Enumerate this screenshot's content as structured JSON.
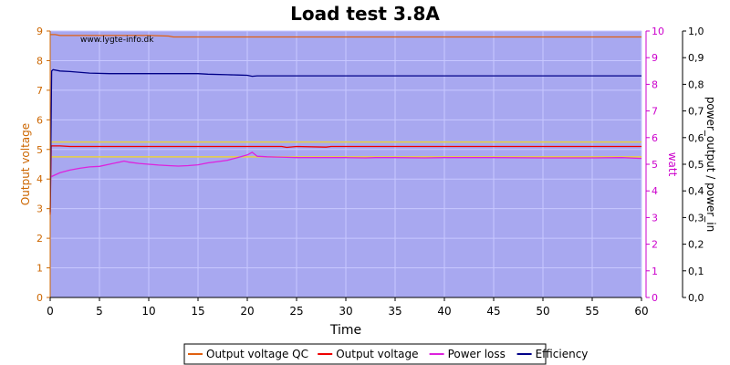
{
  "chart_data": {
    "type": "line",
    "title": "Load test 3.8A",
    "watermark": "www.lygte-info.dk",
    "xlabel": "Time",
    "xlim": [
      0,
      60
    ],
    "x_ticks": [
      "0",
      "5",
      "10",
      "15",
      "20",
      "25",
      "30",
      "35",
      "40",
      "45",
      "50",
      "55",
      "60"
    ],
    "y_left": {
      "label": "Output voltage",
      "color": "#cc6600",
      "lim": [
        0,
        9
      ],
      "ticks": [
        "0",
        "1",
        "2",
        "3",
        "4",
        "5",
        "6",
        "7",
        "8",
        "9"
      ]
    },
    "y_right1": {
      "label": "watt",
      "color": "#cc00cc",
      "lim": [
        0,
        10
      ],
      "ticks": [
        "0",
        "1",
        "2",
        "3",
        "4",
        "5",
        "6",
        "7",
        "8",
        "9",
        "10"
      ]
    },
    "y_right2": {
      "label": "power_output / power_in",
      "color": "#000000",
      "lim": [
        0,
        1
      ],
      "ticks": [
        "0,0",
        "0,1",
        "0,2",
        "0,3",
        "0,4",
        "0,5",
        "0,6",
        "0,7",
        "0,8",
        "0,9",
        "1,0"
      ]
    },
    "plot_background": "#a8a8f0",
    "grid": true,
    "legend_position": "bottom",
    "reference_lines": [
      {
        "axis": "left",
        "value": 5.25,
        "color": "#e8d040"
      },
      {
        "axis": "left",
        "value": 4.75,
        "color": "#e8d040"
      }
    ],
    "series": [
      {
        "name": "Output voltage QC",
        "color": "#e06010",
        "axis": "left",
        "x": [
          0,
          0.5,
          1,
          5,
          10,
          12,
          12.5,
          20,
          30,
          40,
          50,
          60
        ],
        "y": [
          8.88,
          8.88,
          8.85,
          8.85,
          8.85,
          8.83,
          8.8,
          8.8,
          8.8,
          8.8,
          8.8,
          8.8
        ]
      },
      {
        "name": "Output voltage",
        "color": "#ee0000",
        "axis": "left",
        "x": [
          0,
          0.1,
          1,
          2,
          5,
          10,
          20,
          23.5,
          24,
          25,
          28,
          28.5,
          30,
          40,
          50,
          60
        ],
        "y": [
          2.8,
          5.12,
          5.12,
          5.1,
          5.1,
          5.1,
          5.1,
          5.1,
          5.07,
          5.1,
          5.08,
          5.1,
          5.1,
          5.1,
          5.1,
          5.1
        ]
      },
      {
        "name": "Power loss",
        "color": "#dd22dd",
        "axis": "right1",
        "x": [
          0,
          0.2,
          1,
          2,
          3,
          4,
          5,
          6,
          7,
          7.5,
          8,
          9,
          10,
          11,
          12,
          13,
          14,
          15,
          16,
          17,
          18,
          19,
          19.5,
          20,
          20.5,
          21,
          22,
          23,
          24,
          25,
          27,
          30,
          32,
          33,
          35,
          38,
          40,
          45,
          50,
          55,
          58,
          60
        ],
        "y": [
          4.5,
          4.55,
          4.68,
          4.78,
          4.85,
          4.9,
          4.92,
          5.0,
          5.08,
          5.12,
          5.08,
          5.03,
          5.0,
          4.97,
          4.95,
          4.93,
          4.95,
          4.98,
          5.05,
          5.1,
          5.15,
          5.25,
          5.3,
          5.35,
          5.45,
          5.3,
          5.28,
          5.27,
          5.26,
          5.25,
          5.25,
          5.25,
          5.24,
          5.25,
          5.25,
          5.24,
          5.25,
          5.25,
          5.24,
          5.24,
          5.25,
          5.22
        ]
      },
      {
        "name": "Efficiency",
        "color": "#000088",
        "axis": "right2",
        "x": [
          0,
          0.15,
          0.3,
          1,
          2,
          4,
          6,
          8,
          10,
          12,
          14,
          15,
          16,
          18,
          19,
          20,
          20.5,
          21,
          22,
          25,
          30,
          35,
          40,
          45,
          50,
          55,
          60
        ],
        "y": [
          0.32,
          0.85,
          0.855,
          0.85,
          0.848,
          0.842,
          0.84,
          0.84,
          0.84,
          0.84,
          0.84,
          0.84,
          0.838,
          0.836,
          0.835,
          0.834,
          0.83,
          0.832,
          0.832,
          0.832,
          0.832,
          0.832,
          0.832,
          0.832,
          0.832,
          0.832,
          0.832
        ]
      }
    ]
  }
}
